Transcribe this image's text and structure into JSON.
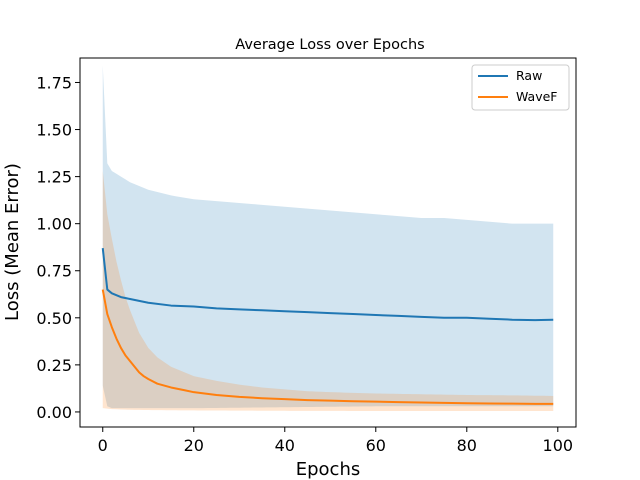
{
  "chart_data": {
    "type": "line",
    "title": "Average Loss over Epochs",
    "xlabel": "Epochs",
    "ylabel": "Loss (Mean Error)",
    "xlim": [
      -5,
      104
    ],
    "ylim": [
      -0.08,
      1.88
    ],
    "xticks": [
      0,
      20,
      40,
      60,
      80,
      100
    ],
    "yticks": [
      0.0,
      0.25,
      0.5,
      0.75,
      1.0,
      1.25,
      1.5,
      1.75
    ],
    "ytick_labels": [
      "0.00",
      "0.25",
      "0.50",
      "0.75",
      "1.00",
      "1.25",
      "1.50",
      "1.75"
    ],
    "xtick_labels": [
      "0",
      "20",
      "40",
      "60",
      "80",
      "100"
    ],
    "grid": false,
    "legend_position": "top-right",
    "series": [
      {
        "name": "Raw",
        "color": "#1f77b4",
        "band_color": "#1f77b4",
        "points": [
          [
            0,
            0.87
          ],
          [
            1,
            0.65
          ],
          [
            2,
            0.63
          ],
          [
            4,
            0.61
          ],
          [
            6,
            0.6
          ],
          [
            8,
            0.59
          ],
          [
            10,
            0.58
          ],
          [
            15,
            0.565
          ],
          [
            20,
            0.56
          ],
          [
            25,
            0.55
          ],
          [
            30,
            0.545
          ],
          [
            35,
            0.54
          ],
          [
            40,
            0.535
          ],
          [
            45,
            0.53
          ],
          [
            50,
            0.525
          ],
          [
            55,
            0.52
          ],
          [
            60,
            0.515
          ],
          [
            65,
            0.51
          ],
          [
            70,
            0.505
          ],
          [
            75,
            0.5
          ],
          [
            80,
            0.5
          ],
          [
            85,
            0.495
          ],
          [
            90,
            0.49
          ],
          [
            95,
            0.488
          ],
          [
            99,
            0.49
          ]
        ],
        "upper": [
          [
            0,
            1.84
          ],
          [
            1,
            1.32
          ],
          [
            2,
            1.28
          ],
          [
            4,
            1.25
          ],
          [
            6,
            1.22
          ],
          [
            8,
            1.2
          ],
          [
            10,
            1.18
          ],
          [
            15,
            1.15
          ],
          [
            20,
            1.13
          ],
          [
            25,
            1.12
          ],
          [
            30,
            1.11
          ],
          [
            35,
            1.1
          ],
          [
            40,
            1.09
          ],
          [
            45,
            1.08
          ],
          [
            50,
            1.07
          ],
          [
            55,
            1.06
          ],
          [
            60,
            1.05
          ],
          [
            65,
            1.04
          ],
          [
            70,
            1.03
          ],
          [
            75,
            1.03
          ],
          [
            80,
            1.02
          ],
          [
            85,
            1.01
          ],
          [
            90,
            1.0
          ],
          [
            95,
            1.0
          ],
          [
            99,
            1.0
          ]
        ],
        "lower": [
          [
            0,
            0.14
          ],
          [
            1,
            0.03
          ],
          [
            2,
            0.02
          ],
          [
            5,
            0.02
          ],
          [
            10,
            0.02
          ],
          [
            20,
            0.02
          ],
          [
            40,
            0.025
          ],
          [
            60,
            0.03
          ],
          [
            80,
            0.03
          ],
          [
            99,
            0.03
          ]
        ]
      },
      {
        "name": "WaveF",
        "color": "#ff7f0e",
        "band_color": "#ff7f0e",
        "points": [
          [
            0,
            0.65
          ],
          [
            1,
            0.52
          ],
          [
            2,
            0.45
          ],
          [
            3,
            0.39
          ],
          [
            4,
            0.34
          ],
          [
            5,
            0.3
          ],
          [
            6,
            0.27
          ],
          [
            7,
            0.24
          ],
          [
            8,
            0.21
          ],
          [
            9,
            0.19
          ],
          [
            10,
            0.175
          ],
          [
            12,
            0.15
          ],
          [
            15,
            0.13
          ],
          [
            18,
            0.115
          ],
          [
            20,
            0.105
          ],
          [
            25,
            0.09
          ],
          [
            30,
            0.08
          ],
          [
            35,
            0.073
          ],
          [
            40,
            0.068
          ],
          [
            45,
            0.063
          ],
          [
            50,
            0.06
          ],
          [
            55,
            0.057
          ],
          [
            60,
            0.055
          ],
          [
            65,
            0.052
          ],
          [
            70,
            0.05
          ],
          [
            75,
            0.048
          ],
          [
            80,
            0.046
          ],
          [
            85,
            0.045
          ],
          [
            90,
            0.044
          ],
          [
            95,
            0.043
          ],
          [
            99,
            0.043
          ]
        ],
        "upper": [
          [
            0,
            1.28
          ],
          [
            1,
            1.05
          ],
          [
            2,
            0.92
          ],
          [
            3,
            0.8
          ],
          [
            4,
            0.7
          ],
          [
            5,
            0.61
          ],
          [
            6,
            0.54
          ],
          [
            7,
            0.48
          ],
          [
            8,
            0.42
          ],
          [
            9,
            0.38
          ],
          [
            10,
            0.34
          ],
          [
            12,
            0.29
          ],
          [
            15,
            0.24
          ],
          [
            18,
            0.21
          ],
          [
            20,
            0.19
          ],
          [
            25,
            0.165
          ],
          [
            30,
            0.145
          ],
          [
            35,
            0.13
          ],
          [
            40,
            0.12
          ],
          [
            45,
            0.11
          ],
          [
            50,
            0.105
          ],
          [
            60,
            0.098
          ],
          [
            70,
            0.094
          ],
          [
            80,
            0.09
          ],
          [
            90,
            0.088
          ],
          [
            99,
            0.085
          ]
        ],
        "lower": [
          [
            0,
            0.02
          ],
          [
            2,
            0.015
          ],
          [
            5,
            0.012
          ],
          [
            10,
            0.01
          ],
          [
            20,
            0.008
          ],
          [
            40,
            0.006
          ],
          [
            60,
            0.005
          ],
          [
            80,
            0.005
          ],
          [
            99,
            0.005
          ]
        ]
      }
    ]
  }
}
